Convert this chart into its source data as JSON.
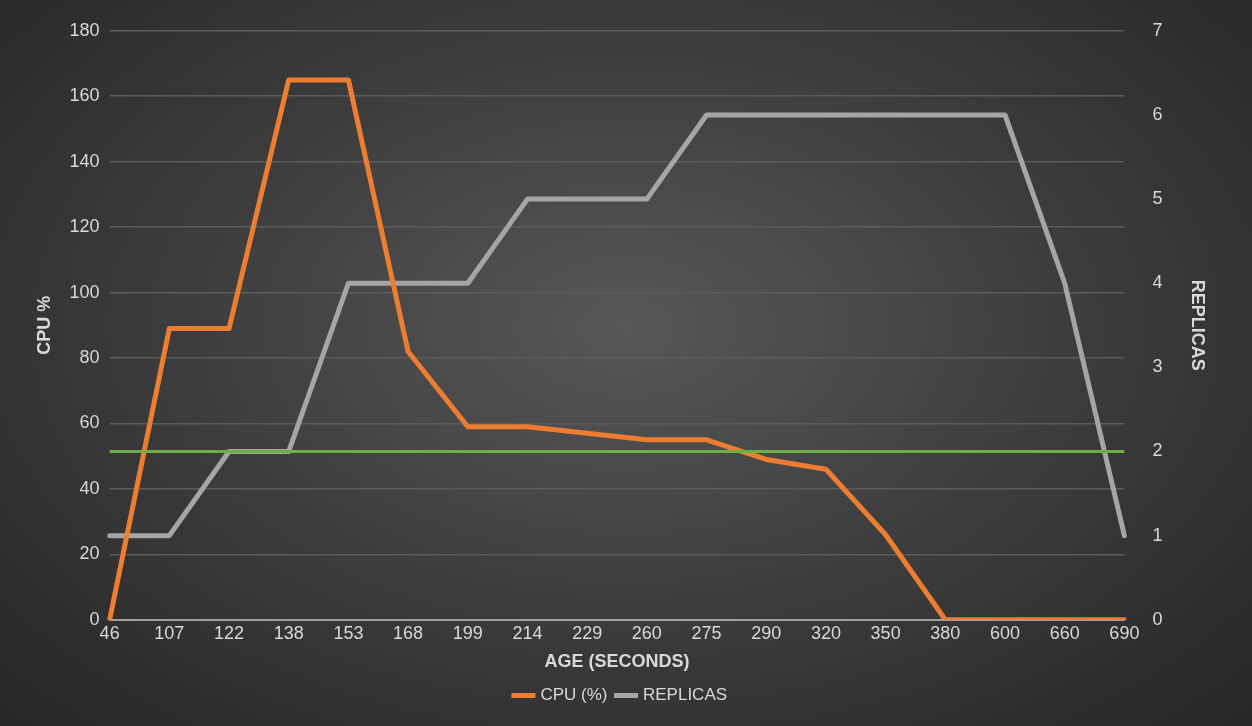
{
  "chart_data": {
    "type": "line",
    "xlabel": "AGE (SECONDS)",
    "ylabel": "CPU %",
    "y2label": "REPLICAS",
    "categories": [
      "46",
      "107",
      "122",
      "138",
      "153",
      "168",
      "199",
      "214",
      "229",
      "260",
      "275",
      "290",
      "320",
      "350",
      "380",
      "600",
      "660",
      "690"
    ],
    "series": [
      {
        "name": "CPU (%)",
        "color": "#ed7d31",
        "values": [
          0,
          89,
          89,
          165,
          165,
          82,
          59,
          59,
          57,
          55,
          55,
          49,
          46,
          26,
          0,
          0,
          0,
          0
        ]
      },
      {
        "name": "REPLICAS",
        "color": "#a5a5a5",
        "axis": "y2",
        "values": [
          1,
          1,
          2,
          2,
          4,
          4,
          4,
          5,
          5,
          5,
          6,
          6,
          6,
          6,
          6,
          6,
          4,
          1
        ]
      }
    ],
    "ylim": [
      0,
      180
    ],
    "yticks": [
      0,
      20,
      40,
      60,
      80,
      100,
      120,
      140,
      160,
      180
    ],
    "y2lim": [
      0,
      7
    ],
    "y2ticks": [
      0,
      1,
      2,
      3,
      4,
      5,
      6,
      7
    ],
    "ref_lines": [
      {
        "axis": "y2",
        "value": 2,
        "color": "#70ad47"
      }
    ],
    "grid": "y",
    "legend": "bottom",
    "marker": "none",
    "line_style": "solid"
  }
}
